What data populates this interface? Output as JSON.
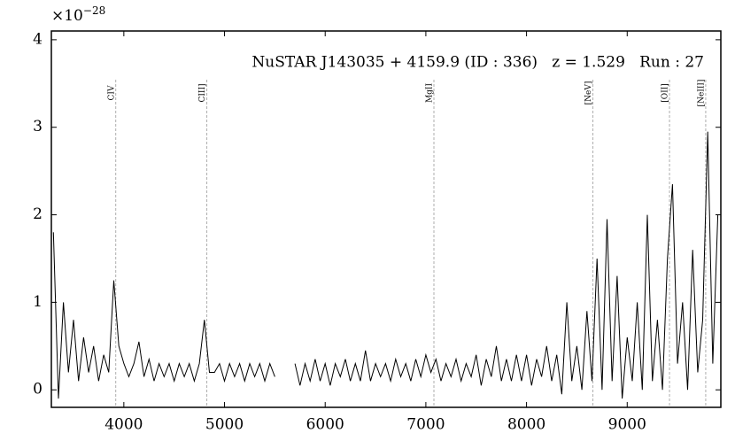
{
  "chart_data": {
    "type": "line",
    "multiplier_base": "×10",
    "multiplier_exponent": "−28",
    "annotation": "NuSTAR J143035 + 4159.9 (ID : 336)   z = 1.529   Run : 27",
    "lines": [
      {
        "label": "CIV",
        "x": 3920
      },
      {
        "label": "CIII]",
        "x": 4825
      },
      {
        "label": "MgII",
        "x": 7080
      },
      {
        "label": "[NeV]",
        "x": 8660
      },
      {
        "label": "[OII]",
        "x": 9420
      },
      {
        "label": "[NeIII]",
        "x": 9780
      }
    ],
    "xlim": [
      3280,
      9930
    ],
    "ylim": [
      -0.2,
      4.1
    ],
    "xticks": [
      4000,
      5000,
      6000,
      7000,
      8000,
      9000
    ],
    "yticks": [
      0,
      1,
      2,
      3,
      4
    ],
    "color": "#000000",
    "x": [
      3300,
      3350,
      3400,
      3450,
      3500,
      3550,
      3600,
      3650,
      3700,
      3750,
      3800,
      3850,
      3900,
      3950,
      4000,
      4050,
      4100,
      4150,
      4200,
      4250,
      4300,
      4350,
      4400,
      4450,
      4500,
      4550,
      4600,
      4650,
      4700,
      4750,
      4800,
      4850,
      4900,
      4950,
      5000,
      5050,
      5100,
      5150,
      5200,
      5250,
      5300,
      5350,
      5400,
      5450,
      5500,
      5550,
      5600,
      5650,
      5700,
      5750,
      5800,
      5850,
      5900,
      5950,
      6000,
      6050,
      6100,
      6150,
      6200,
      6250,
      6300,
      6350,
      6400,
      6450,
      6500,
      6550,
      6600,
      6650,
      6700,
      6750,
      6800,
      6850,
      6900,
      6950,
      7000,
      7050,
      7100,
      7150,
      7200,
      7250,
      7300,
      7350,
      7400,
      7450,
      7500,
      7550,
      7600,
      7650,
      7700,
      7750,
      7800,
      7850,
      7900,
      7950,
      8000,
      8050,
      8100,
      8150,
      8200,
      8250,
      8300,
      8350,
      8400,
      8450,
      8500,
      8550,
      8600,
      8650,
      8700,
      8750,
      8800,
      8850,
      8900,
      8950,
      9000,
      9050,
      9100,
      9150,
      9200,
      9250,
      9300,
      9350,
      9400,
      9450,
      9500,
      9550,
      9600,
      9650,
      9700,
      9750,
      9800,
      9850,
      9900
    ],
    "values": [
      1.8,
      -0.1,
      1.0,
      0.2,
      0.8,
      0.1,
      0.6,
      0.2,
      0.5,
      0.1,
      0.4,
      0.2,
      1.25,
      0.5,
      0.3,
      0.15,
      0.3,
      0.55,
      0.15,
      0.35,
      0.1,
      0.3,
      0.15,
      0.3,
      0.1,
      0.3,
      0.15,
      0.3,
      0.1,
      0.3,
      0.8,
      0.2,
      0.2,
      0.3,
      0.1,
      0.3,
      0.15,
      0.3,
      0.1,
      0.3,
      0.15,
      0.3,
      0.1,
      0.3,
      0.15,
      null,
      null,
      null,
      0.3,
      0.05,
      0.3,
      0.1,
      0.35,
      0.1,
      0.3,
      0.05,
      0.3,
      0.15,
      0.35,
      0.1,
      0.3,
      0.1,
      0.45,
      0.1,
      0.3,
      0.15,
      0.3,
      0.1,
      0.35,
      0.15,
      0.3,
      0.1,
      0.35,
      0.15,
      0.4,
      0.2,
      0.35,
      0.1,
      0.3,
      0.15,
      0.35,
      0.1,
      0.3,
      0.15,
      0.4,
      0.05,
      0.35,
      0.15,
      0.5,
      0.1,
      0.35,
      0.1,
      0.4,
      0.1,
      0.4,
      0.05,
      0.35,
      0.15,
      0.5,
      0.1,
      0.4,
      -0.05,
      1.0,
      0.1,
      0.5,
      0.0,
      0.9,
      0.1,
      1.5,
      0.0,
      1.95,
      0.1,
      1.3,
      -0.1,
      0.6,
      0.1,
      1.0,
      0.0,
      2.0,
      0.1,
      0.8,
      0.0,
      1.5,
      2.35,
      0.3,
      1.0,
      0.0,
      1.6,
      0.2,
      0.8,
      2.95,
      0.3,
      2.0
    ]
  }
}
